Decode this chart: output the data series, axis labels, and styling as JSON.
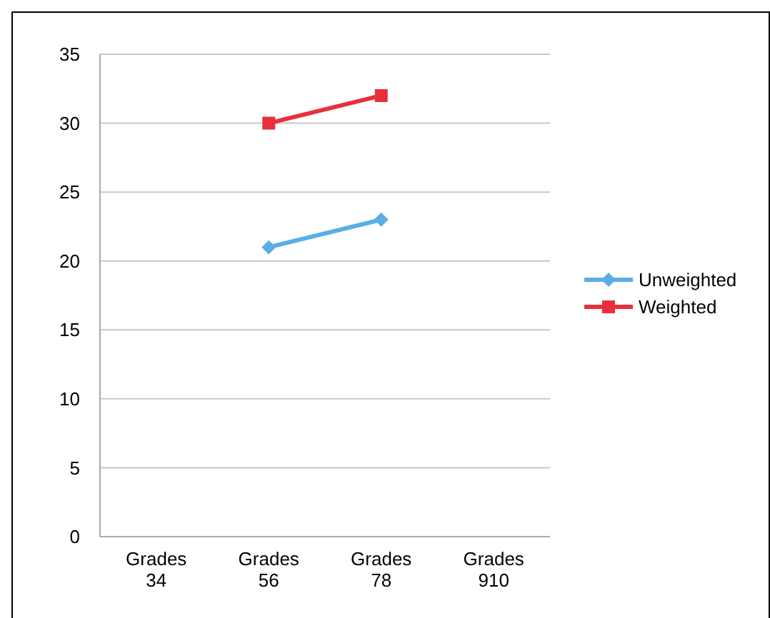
{
  "chart_data": {
    "type": "line",
    "categories": [
      "Grades 34",
      "Grades 56",
      "Grades 78",
      "Grades 910"
    ],
    "series": [
      {
        "name": "Unweighted",
        "color": "#5aaee6",
        "marker": "diamond",
        "values": [
          null,
          21,
          23,
          null
        ]
      },
      {
        "name": "Weighted",
        "color": "#e8303a",
        "marker": "square",
        "values": [
          null,
          30,
          32,
          null
        ]
      }
    ],
    "ylim": [
      0,
      35
    ],
    "yticks": [
      0,
      5,
      10,
      15,
      20,
      25,
      30,
      35
    ],
    "grid": "y",
    "legend": "right"
  }
}
